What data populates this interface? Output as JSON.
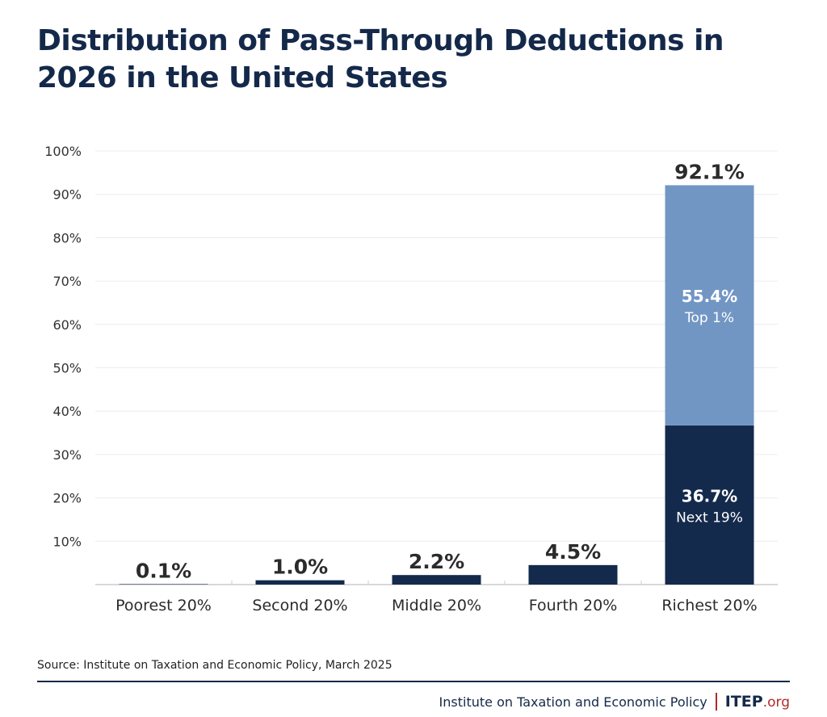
{
  "chart_data": {
    "type": "bar",
    "stacked": true,
    "title": "Distribution of Pass-Through Deductions in 2026 in the United States",
    "categories": [
      "Poorest 20%",
      "Second 20%",
      "Middle 20%",
      "Fourth 20%",
      "Richest 20%"
    ],
    "values": [
      0.1,
      1.0,
      2.2,
      4.5,
      92.1
    ],
    "value_labels": [
      "0.1%",
      "1.0%",
      "2.2%",
      "4.5%",
      "92.1%"
    ],
    "stack_segments": [
      {
        "name": "Next 19%",
        "category": "Richest 20%",
        "value": 36.7,
        "label": "36.7%",
        "color": "#142a4c"
      },
      {
        "name": "Top 1%",
        "category": "Richest 20%",
        "value": 55.4,
        "label": "55.4%",
        "color": "#7196c4"
      }
    ],
    "ylim": [
      0,
      100
    ],
    "yticks": [
      "10%",
      "20%",
      "30%",
      "40%",
      "50%",
      "60%",
      "70%",
      "80%",
      "90%",
      "100%"
    ],
    "grid": true,
    "bar_color": "#142a4c",
    "xlabel": "",
    "ylabel": ""
  },
  "source": "Source: Institute on Taxation and Economic Policy, March 2025",
  "footer": {
    "org_name": "Institute on Taxation and Economic Policy",
    "logo_main": "ITEP",
    "logo_suffix": ".org"
  }
}
